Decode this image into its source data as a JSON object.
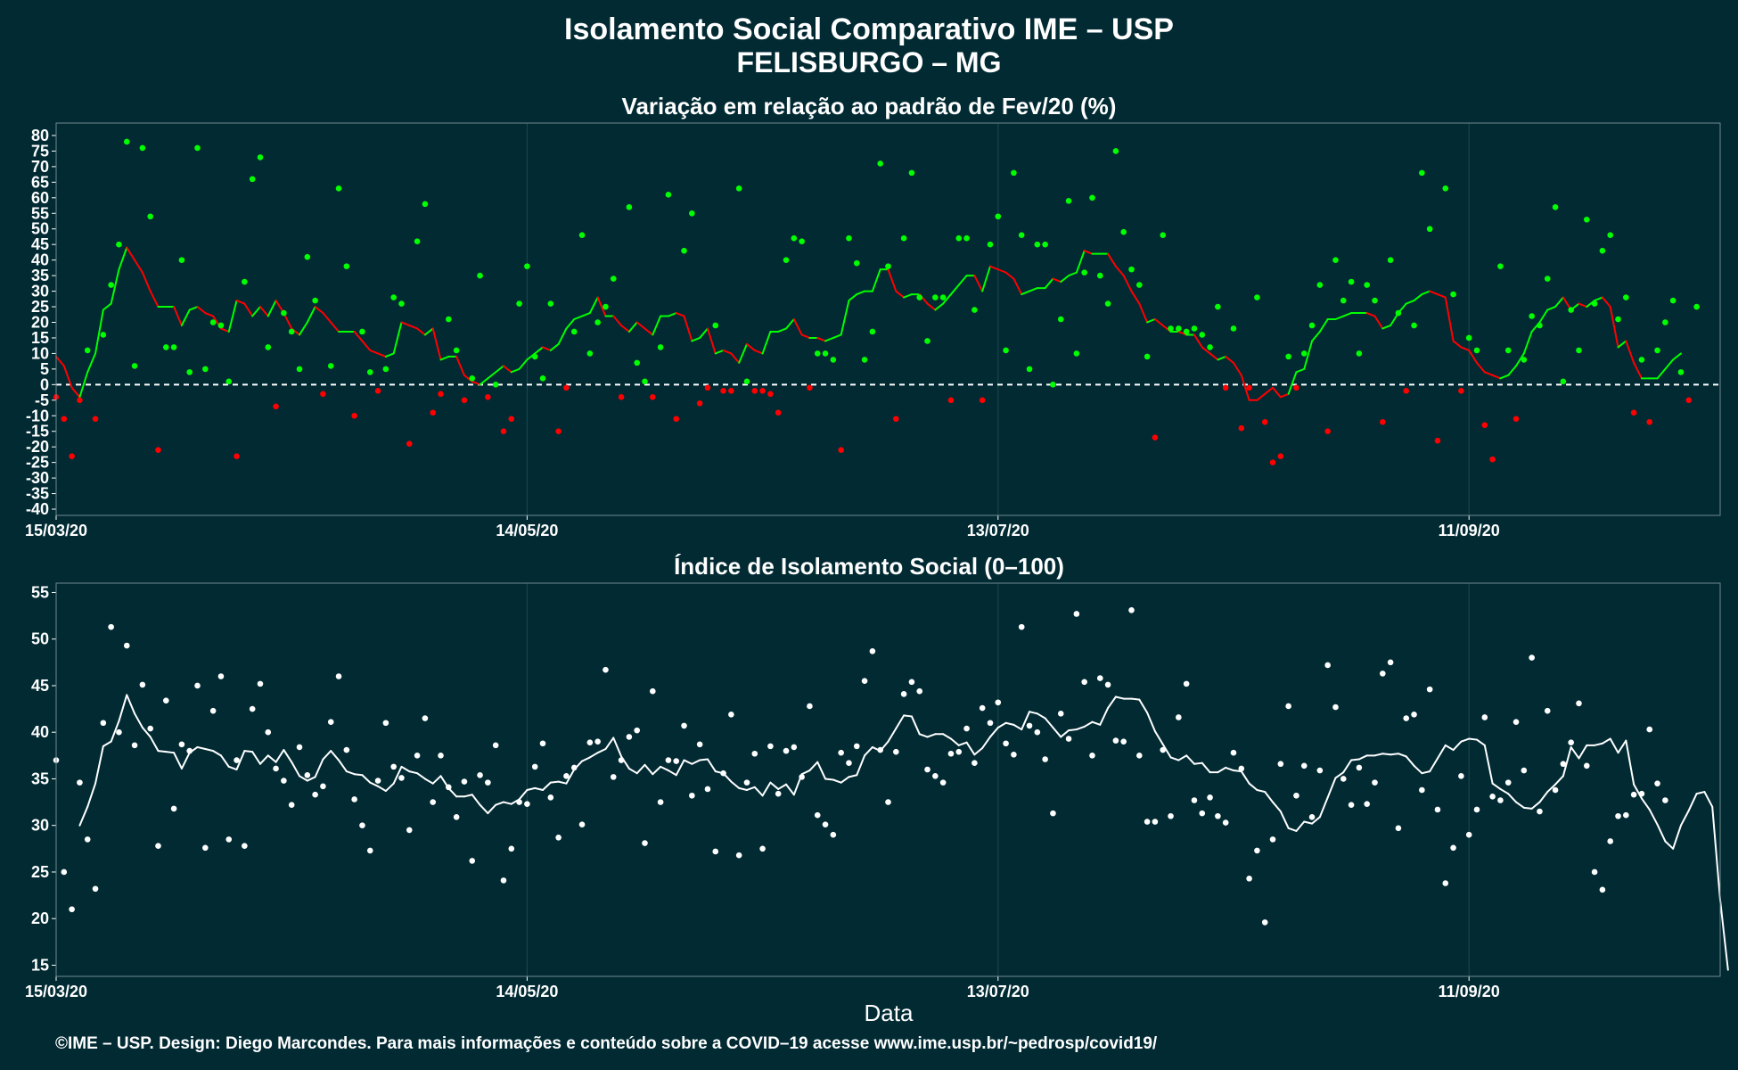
{
  "header": {
    "title_line1": "Isolamento Social Comparativo IME – USP",
    "title_line2": "FELISBURGO – MG"
  },
  "footer": {
    "credit": "©IME – USP. Design: Diego Marcondes. Para mais informações e conteúdo sobre a COVID–19 acesse www.ime.usp.br/~pedrosp/covid19/"
  },
  "colors": {
    "background": "#012a33",
    "positive": "#00ff00",
    "negative": "#ff0000",
    "index": "#ffffff",
    "grid": "#1e4a4c"
  },
  "chart_data": [
    {
      "type": "scatter",
      "title": "Variação em relação ao padrão de Fev/20 (%)",
      "xlabel": "",
      "ylabel": "",
      "x_tick_labels": [
        "15/03/20",
        "14/05/20",
        "13/07/20",
        "11/09/20"
      ],
      "x_tick_days": [
        0,
        60,
        120,
        180
      ],
      "x_range_days": [
        0,
        212
      ],
      "ylim": [
        -42,
        84
      ],
      "y_ticks": [
        -40,
        -35,
        -30,
        -25,
        -20,
        -15,
        -10,
        -5,
        0,
        5,
        10,
        15,
        20,
        25,
        30,
        35,
        40,
        45,
        50,
        55,
        60,
        65,
        70,
        75,
        80
      ],
      "reference_line": 0,
      "grid": "vertical",
      "series": [
        {
          "kind": "points",
          "values": [
            -4,
            -11,
            -23,
            -5,
            11,
            -11,
            16,
            32,
            45,
            78,
            6,
            76,
            54,
            -21,
            12,
            12,
            40,
            4,
            76,
            5,
            20,
            19,
            1,
            -23,
            33,
            66,
            73,
            12,
            -7,
            23,
            17,
            5,
            41,
            27,
            -3,
            6,
            63,
            38,
            -10,
            17,
            4,
            -2,
            5,
            28,
            26,
            -19,
            46,
            58,
            -9,
            -3,
            21,
            11,
            -5,
            2,
            35,
            -4,
            0,
            -15,
            -11,
            26,
            38,
            9,
            2,
            26,
            -15,
            -1,
            17,
            48,
            10,
            20,
            25,
            34,
            -4,
            57,
            7,
            1,
            -4,
            12,
            61,
            -11,
            43,
            55,
            -6,
            -1,
            19,
            -2,
            -2,
            63,
            1,
            -2,
            -2,
            -3,
            -9,
            40,
            47,
            46,
            -1,
            10,
            10,
            8,
            -21,
            47,
            39,
            8,
            17,
            71,
            38,
            -11,
            47,
            68,
            28,
            14,
            28,
            28,
            -5,
            47,
            47,
            24,
            -5,
            45,
            54,
            11,
            68,
            48,
            5,
            45,
            45,
            0,
            21,
            59,
            10,
            36,
            60,
            35,
            26,
            75,
            49,
            37,
            32,
            9,
            -17,
            48,
            18,
            18,
            17,
            18,
            16,
            12,
            25,
            -1,
            18,
            -14,
            -1,
            28,
            -12,
            -25,
            -23,
            9,
            -1,
            10,
            19,
            32,
            -15,
            40,
            27,
            33,
            10,
            32,
            27,
            -12,
            40,
            23,
            -2,
            19,
            68,
            50,
            -18,
            63,
            29,
            -2,
            15,
            11,
            -13,
            -24,
            38,
            11,
            -11,
            8,
            22,
            19,
            34,
            57,
            1,
            24,
            11,
            53,
            26,
            43,
            48,
            21,
            28,
            -9,
            8,
            -12,
            11,
            20,
            27,
            4,
            -5,
            25
          ]
        },
        {
          "kind": "moving_average",
          "start_day": 0,
          "values": [
            9,
            6,
            -1,
            -4,
            4,
            10,
            24,
            26,
            37,
            44,
            40,
            36,
            30,
            25,
            25,
            25,
            19,
            24,
            25,
            23,
            22,
            18,
            17,
            27,
            26,
            22,
            25,
            22,
            27,
            23,
            18,
            16,
            20,
            25,
            23,
            20,
            17,
            17,
            17,
            14,
            11,
            10,
            9,
            10,
            20,
            19,
            18,
            16,
            18,
            8,
            9,
            9,
            3,
            1,
            0,
            2,
            4,
            6,
            4,
            5,
            8,
            10,
            12,
            11,
            13,
            18,
            21,
            22,
            23,
            28,
            22,
            22,
            19,
            17,
            20,
            18,
            16,
            22,
            22,
            23,
            22,
            14,
            15,
            18,
            10,
            11,
            10,
            7,
            13,
            11,
            10,
            17,
            17,
            18,
            21,
            16,
            15,
            15,
            14,
            15,
            16,
            27,
            29,
            30,
            30,
            37,
            37,
            30,
            28,
            29,
            29,
            26,
            24,
            26,
            29,
            32,
            35,
            35,
            30,
            38,
            37,
            36,
            34,
            29,
            30,
            31,
            31,
            34,
            33,
            35,
            36,
            43,
            42,
            42,
            42,
            38,
            35,
            30,
            26,
            20,
            21,
            19,
            17,
            17,
            16,
            16,
            12,
            10,
            8,
            9,
            7,
            3,
            -5,
            -5,
            -3,
            -1,
            -4,
            -3,
            4,
            5,
            14,
            17,
            21,
            21,
            22,
            23,
            23,
            23,
            22,
            18,
            19,
            23,
            26,
            27,
            29,
            30,
            29,
            28,
            14,
            12,
            11,
            7,
            4,
            3,
            2,
            3,
            6,
            10,
            17,
            20,
            24,
            25,
            28,
            24,
            26,
            25,
            27,
            28,
            25,
            12,
            14,
            7,
            2,
            2,
            2,
            5,
            8,
            10
          ]
        }
      ]
    },
    {
      "type": "scatter",
      "title": "Índice de Isolamento Social (0–100)",
      "xlabel": "Data",
      "ylabel": "",
      "x_tick_labels": [
        "15/03/20",
        "14/05/20",
        "13/07/20",
        "11/09/20"
      ],
      "x_tick_days": [
        0,
        60,
        120,
        180
      ],
      "x_range_days": [
        0,
        212
      ],
      "ylim": [
        13.8,
        56
      ],
      "y_ticks": [
        15,
        20,
        25,
        30,
        35,
        40,
        45,
        50,
        55
      ],
      "grid": "vertical",
      "series": [
        {
          "kind": "points",
          "values": [
            37,
            25,
            21,
            34.6,
            28.5,
            23.2,
            41,
            51.3,
            40,
            49.3,
            38.6,
            45.1,
            40.4,
            27.8,
            43.4,
            31.8,
            38.7,
            38,
            45,
            27.6,
            42.3,
            46,
            28.5,
            37,
            27.8,
            42.5,
            45.2,
            40,
            36.1,
            34.8,
            32.2,
            38.4,
            35.4,
            33.3,
            34.2,
            41.1,
            46,
            38.1,
            32.8,
            30,
            27.3,
            34.8,
            41,
            36.3,
            35.1,
            29.5,
            37.5,
            41.5,
            32.5,
            37.5,
            34.1,
            30.9,
            34.7,
            26.2,
            35.4,
            34.6,
            38.6,
            24.1,
            27.5,
            32.5,
            32.3,
            36.3,
            38.8,
            33,
            28.7,
            35.3,
            36.2,
            30.1,
            38.9,
            39,
            46.7,
            35.2,
            37,
            39.5,
            40.2,
            28.1,
            44.4,
            32.5,
            37,
            36.9,
            40.7,
            33.2,
            38.7,
            33.9,
            27.2,
            35.6,
            41.9,
            26.8,
            34.6,
            37.7,
            27.5,
            38.5,
            33.4,
            38,
            38.4,
            35.2,
            42.8,
            31.1,
            30.1,
            29,
            37.8,
            36.7,
            38.5,
            45.5,
            48.7,
            38.1,
            32.5,
            37.9,
            44.1,
            45.4,
            44.4,
            36,
            35.3,
            34.6,
            37.7,
            37.9,
            40.4,
            36.7,
            42.6,
            41,
            43.2,
            38.8,
            37.6,
            51.3,
            40.7,
            40,
            37.1,
            31.3,
            42,
            39.3,
            52.7,
            45.4,
            37.5,
            45.8,
            45.1,
            39.1,
            39,
            53.1,
            37.5,
            30.4,
            30.4,
            38.1,
            31,
            41.6,
            45.2,
            32.7,
            31.3,
            33,
            31,
            30.3,
            37.8,
            36.1,
            24.3,
            27.3,
            19.6,
            28.5,
            36.6,
            42.8,
            33.2,
            36.4,
            30.9,
            35.9,
            47.2,
            42.7,
            35,
            32.2,
            36.2,
            32.3,
            34.6,
            46.3,
            47.5,
            29.7,
            41.5,
            41.9,
            33.8,
            44.6,
            31.7,
            23.8,
            27.6,
            35.3,
            29,
            31.7,
            41.6,
            33.1,
            32.7,
            34.6,
            41.1,
            35.9,
            48,
            31.5,
            42.3,
            33.8,
            36.6,
            38.9,
            43.1,
            36.4,
            25,
            23.1,
            28.3,
            31,
            31.1,
            33.3,
            33.4,
            40.3,
            34.5,
            32.7
          ]
        },
        {
          "kind": "moving_average",
          "start_day": 3,
          "values": [
            30,
            32,
            34.5,
            38.5,
            39,
            41.2,
            44,
            42,
            40.5,
            39.5,
            38,
            37.9,
            37.8,
            36.1,
            37.8,
            38.4,
            38.2,
            38,
            37.5,
            36.3,
            36,
            38,
            37.9,
            36.6,
            37.5,
            36.8,
            38.1,
            36.8,
            35.3,
            34.8,
            35.2,
            37.1,
            38,
            37,
            35.8,
            35.5,
            35.4,
            34.6,
            34.2,
            33.7,
            34.5,
            36.3,
            35.8,
            35.6,
            35,
            34.5,
            35.3,
            34,
            33.1,
            33.1,
            33.3,
            32.2,
            31.3,
            32.2,
            32.5,
            32.3,
            32.8,
            33.8,
            34,
            33.8,
            34.6,
            34.7,
            34.5,
            36,
            36.9,
            37.3,
            37.8,
            38.2,
            39.4,
            37.4,
            36.1,
            35.6,
            36.5,
            35.5,
            36.3,
            35.9,
            35.4,
            37,
            36.6,
            37,
            37.1,
            35.8,
            35.6,
            34.7,
            34,
            33.8,
            34.1,
            33.2,
            34.6,
            33.9,
            34.4,
            33.3,
            35.5,
            35.9,
            36.8,
            35,
            34.9,
            34.6,
            35.2,
            35.4,
            37.5,
            38.4,
            38,
            39,
            40.4,
            41.8,
            41.7,
            39.8,
            39.5,
            39.8,
            39.8,
            39.3,
            38.6,
            38.9,
            37.6,
            38.3,
            39.5,
            40.5,
            41,
            40.8,
            40.3,
            42.2,
            42,
            41.5,
            40.5,
            39.5,
            40.2,
            40.3,
            40.6,
            41.1,
            40.8,
            42.6,
            43.8,
            43.6,
            43.6,
            43.5,
            42.1,
            40.1,
            38.7,
            37.3,
            37,
            37.5,
            36.6,
            36.7,
            35.7,
            35.7,
            36.2,
            35.9,
            35.8,
            34.5,
            33.8,
            33.6,
            32.5,
            31.5,
            29.7,
            29.4,
            30.4,
            30.2,
            30.9,
            33,
            35.1,
            35.7,
            37,
            37.1,
            37.5,
            37.5,
            37.7,
            37.6,
            37.7,
            37.4,
            36.4,
            35.6,
            35.8,
            37.2,
            38.6,
            38.1,
            39,
            39.3,
            39.2,
            38.6,
            34.5,
            33.9,
            33.4,
            32.5,
            31.9,
            31.8,
            32.5,
            33.6,
            34.4,
            35.3,
            38.4,
            37.2,
            38.6,
            38.6,
            38.8,
            39.3,
            37.8,
            39.1,
            34.4,
            32.9,
            31.7,
            30.1,
            28.3,
            27.5,
            30,
            31.6,
            33.4,
            33.6,
            32,
            22,
            14.5
          ]
        }
      ]
    }
  ]
}
